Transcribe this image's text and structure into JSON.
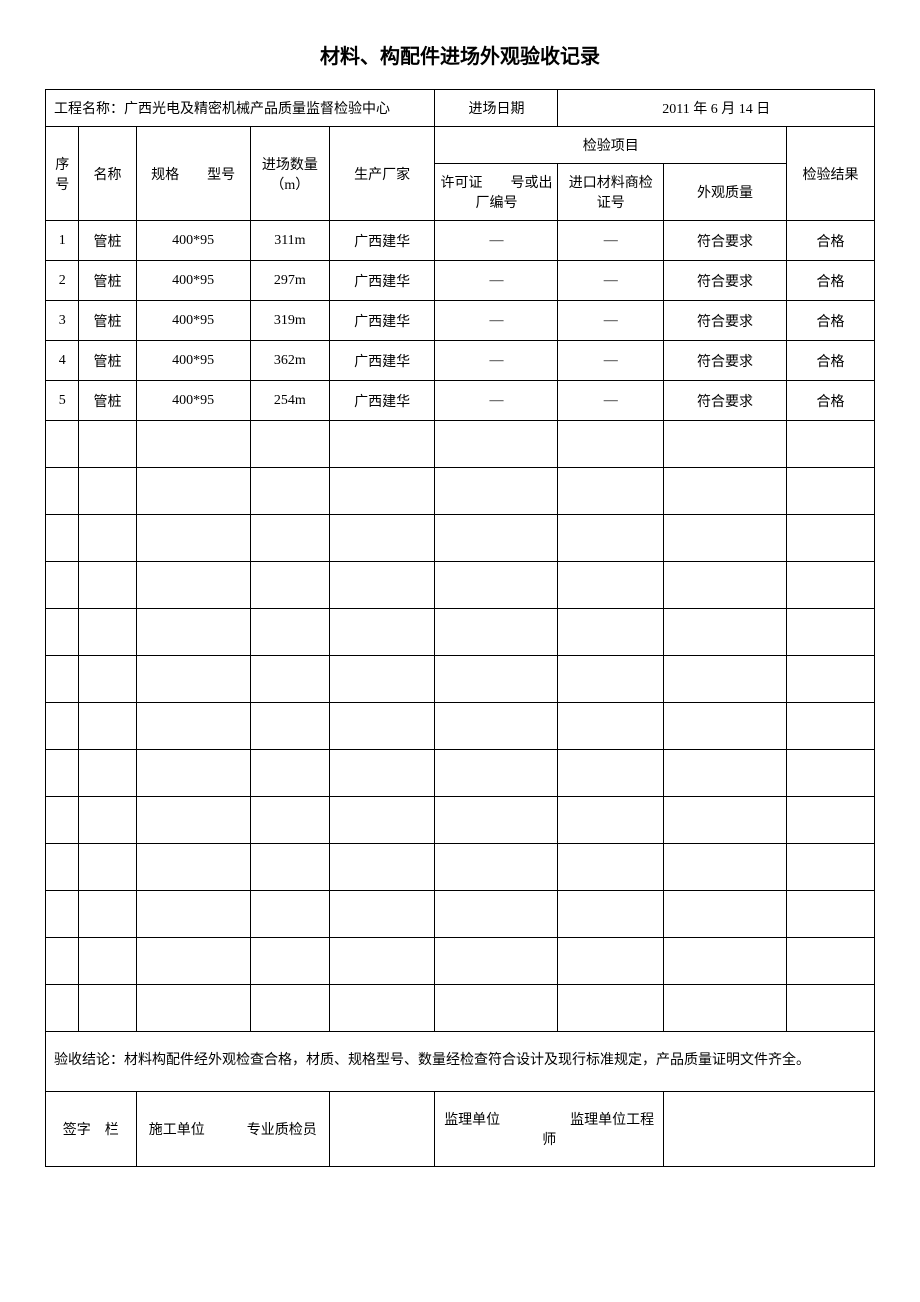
{
  "title": "材料、构配件进场外观验收记录",
  "header": {
    "projectNameLabel": "工程名称：",
    "projectName": "广西光电及精密机械产品质量监督检验中心",
    "entryDateLabel": "进场日期",
    "entryDate": "2011 年 6 月 14 日"
  },
  "columns": {
    "seq": "序号",
    "name": "名称",
    "spec": "规格　　型号",
    "qty": "进场数量（m）",
    "mfr": "生产厂家",
    "inspectGroup": "检验项目",
    "permit": "许可证　　号或出　　厂编号",
    "import": "进口材料商检证号",
    "visual": "外观质量",
    "result": "检验结果"
  },
  "rows": [
    {
      "seq": "1",
      "name": "管桩",
      "spec": "400*95",
      "qty": "311m",
      "mfr": "广西建华",
      "permit": "—",
      "import": "—",
      "visual": "符合要求",
      "result": "合格"
    },
    {
      "seq": "2",
      "name": "管桩",
      "spec": "400*95",
      "qty": "297m",
      "mfr": "广西建华",
      "permit": "—",
      "import": "—",
      "visual": "符合要求",
      "result": "合格"
    },
    {
      "seq": "3",
      "name": "管桩",
      "spec": "400*95",
      "qty": "319m",
      "mfr": "广西建华",
      "permit": "—",
      "import": "—",
      "visual": "符合要求",
      "result": "合格"
    },
    {
      "seq": "4",
      "name": "管桩",
      "spec": "400*95",
      "qty": "362m",
      "mfr": "广西建华",
      "permit": "—",
      "import": "—",
      "visual": "符合要求",
      "result": "合格"
    },
    {
      "seq": "5",
      "name": "管桩",
      "spec": "400*95",
      "qty": "254m",
      "mfr": "广西建华",
      "permit": "—",
      "import": "—",
      "visual": "符合要求",
      "result": "合格"
    }
  ],
  "emptyRowCount": 13,
  "conclusion": {
    "label": "验收结论：",
    "text": "材料构配件经外观检查合格，材质、规格型号、数量经检查符合设计及现行标准规定，产品质量证明文件齐全。"
  },
  "signature": {
    "signLabel": "签字　栏",
    "constructUnit": "施工单位　　　专业质检员",
    "supervisorUnit": "监理单位　　　　　监理单位工程师"
  },
  "styling": {
    "titleFontSize": 20,
    "bodyFontSize": 14,
    "borderColor": "#000000",
    "backgroundColor": "#ffffff",
    "textColor": "#000000",
    "fontFamily": "SimSun"
  }
}
